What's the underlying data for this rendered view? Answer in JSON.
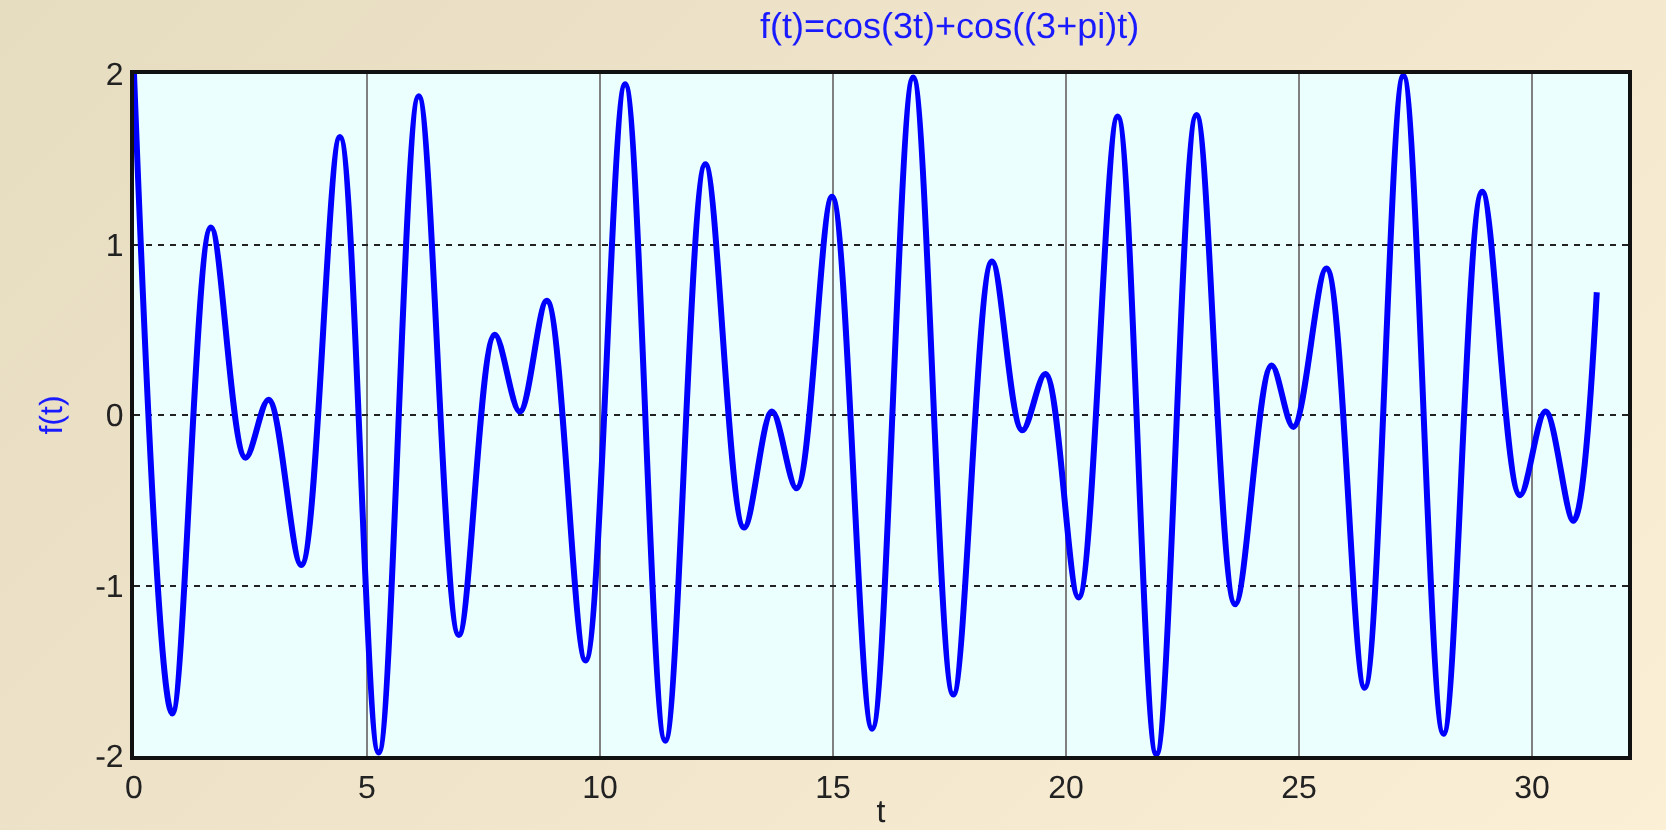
{
  "chart_data": {
    "type": "line",
    "title": "f(t)=cos(3t)+cos((3+pi)t)",
    "xlabel": "t",
    "ylabel": "f(t)",
    "x": [
      0,
      0.82,
      1.65,
      2.39,
      2.89,
      3.59,
      4.42,
      5.25,
      6.11,
      6.97,
      7.74,
      8.28,
      8.86,
      9.69,
      10.54,
      11.4,
      12.26,
      13.09,
      13.69,
      14.22,
      14.98,
      15.84,
      16.72,
      17.58,
      18.41,
      19.06,
      19.56,
      20.27,
      21.11,
      21.94,
      22.8,
      23.63,
      24.41,
      24.88,
      25.59,
      26.41,
      27.24,
      28.1,
      28.93,
      29.74,
      30.29,
      30.89,
      31.39
    ],
    "series": [
      {
        "color": "#0000ff",
        "values": [
          2,
          -1.75,
          1.1,
          -0.25,
          0.09,
          -0.88,
          1.63,
          -1.98,
          1.87,
          -1.29,
          0.47,
          0.02,
          0.67,
          -1.44,
          1.94,
          -1.91,
          1.47,
          -0.66,
          0.02,
          -0.43,
          1.28,
          -1.84,
          1.98,
          -1.64,
          0.9,
          -0.09,
          0.24,
          -1.07,
          1.75,
          -1.99,
          1.76,
          -1.11,
          0.29,
          -0.07,
          0.86,
          -1.6,
          1.99,
          -1.87,
          1.31,
          -0.47,
          0.02,
          -0.62,
          0.72
        ]
      }
    ],
    "xlim": [
      0,
      32.06
    ],
    "xticks": [
      0,
      5,
      10,
      15,
      20,
      25,
      30
    ],
    "ylim": [
      -2,
      2
    ],
    "yticks": [
      -2,
      -1,
      0,
      1,
      2
    ],
    "grid": true,
    "marker": "none",
    "line_style": "solid"
  }
}
